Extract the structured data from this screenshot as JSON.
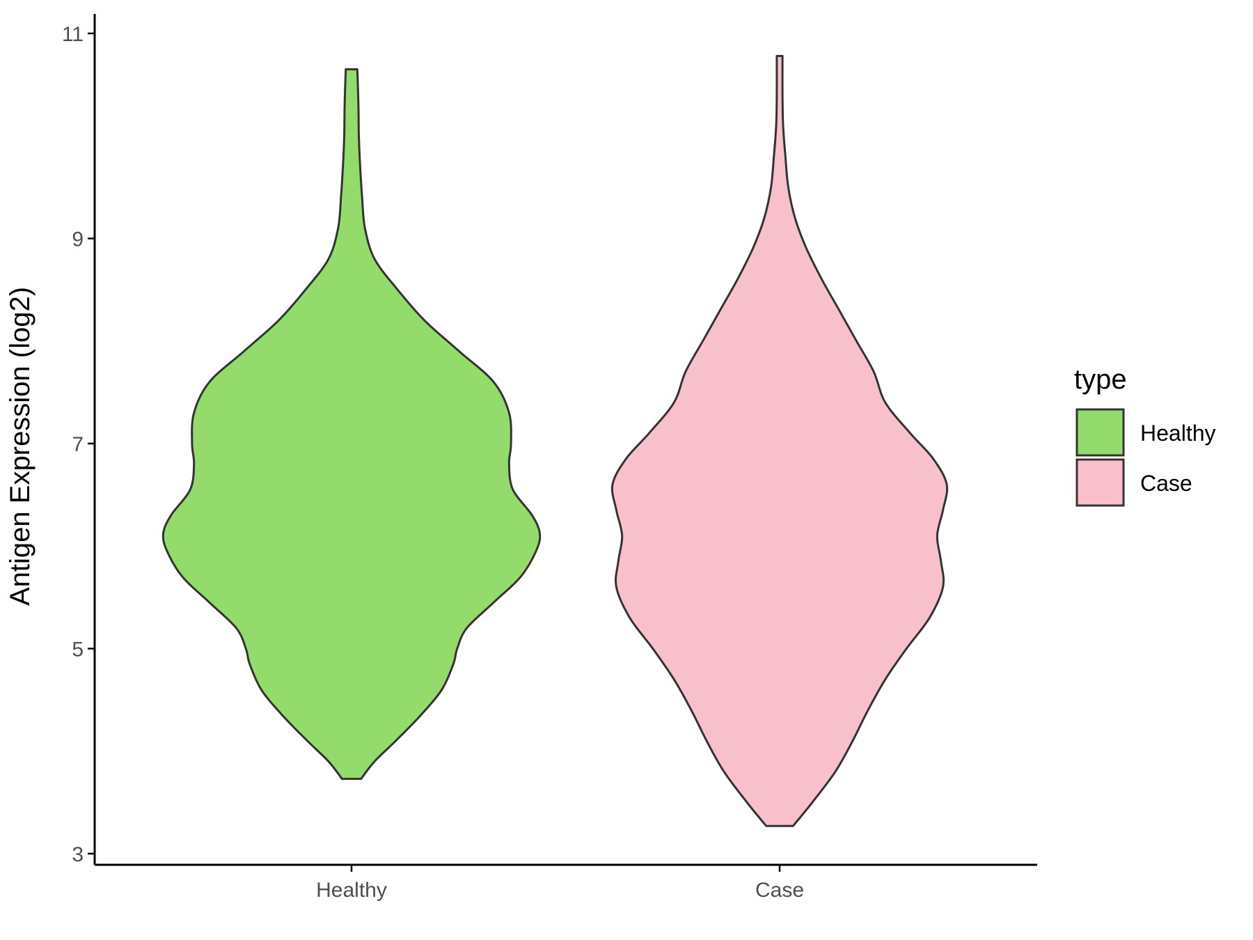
{
  "chart_data": {
    "type": "violin",
    "xlabel": "",
    "ylabel": "Antigen Expression (log2)",
    "ylim": [
      2.9,
      11.2
    ],
    "yticks": [
      3,
      5,
      7,
      9,
      11
    ],
    "yticklabels": [
      "3",
      "5",
      "7",
      "9",
      "11"
    ],
    "categories": [
      "Healthy",
      "Case"
    ],
    "grid": false,
    "legend": {
      "title": "type",
      "placement": "right",
      "entries": [
        {
          "label": "Healthy",
          "color": "#93dc6b"
        },
        {
          "label": "Case",
          "color": "#f7c0cb"
        }
      ]
    },
    "series": [
      {
        "name": "Healthy",
        "color": "#93dc6b",
        "min": 3.73,
        "max": 10.65,
        "density_profile": [
          [
            3.73,
            0.05
          ],
          [
            3.9,
            0.12
          ],
          [
            4.1,
            0.23
          ],
          [
            4.35,
            0.36
          ],
          [
            4.6,
            0.47
          ],
          [
            4.85,
            0.53
          ],
          [
            5.0,
            0.55
          ],
          [
            5.2,
            0.6
          ],
          [
            5.45,
            0.74
          ],
          [
            5.7,
            0.88
          ],
          [
            5.95,
            0.96
          ],
          [
            6.12,
            0.98
          ],
          [
            6.3,
            0.94
          ],
          [
            6.55,
            0.84
          ],
          [
            6.8,
            0.82
          ],
          [
            7.0,
            0.83
          ],
          [
            7.3,
            0.82
          ],
          [
            7.6,
            0.74
          ],
          [
            7.9,
            0.56
          ],
          [
            8.2,
            0.38
          ],
          [
            8.5,
            0.24
          ],
          [
            8.8,
            0.12
          ],
          [
            9.1,
            0.07
          ],
          [
            9.4,
            0.055
          ],
          [
            9.7,
            0.045
          ],
          [
            10.0,
            0.038
          ],
          [
            10.3,
            0.036
          ],
          [
            10.65,
            0.03
          ]
        ]
      },
      {
        "name": "Case",
        "color": "#f7c0cb",
        "min": 3.27,
        "max": 10.78,
        "density_profile": [
          [
            3.27,
            0.07
          ],
          [
            3.5,
            0.17
          ],
          [
            3.8,
            0.29
          ],
          [
            4.1,
            0.38
          ],
          [
            4.4,
            0.46
          ],
          [
            4.7,
            0.55
          ],
          [
            5.0,
            0.66
          ],
          [
            5.3,
            0.78
          ],
          [
            5.6,
            0.85
          ],
          [
            5.85,
            0.84
          ],
          [
            6.1,
            0.82
          ],
          [
            6.35,
            0.85
          ],
          [
            6.6,
            0.87
          ],
          [
            6.85,
            0.8
          ],
          [
            7.1,
            0.68
          ],
          [
            7.4,
            0.55
          ],
          [
            7.7,
            0.49
          ],
          [
            8.0,
            0.4
          ],
          [
            8.3,
            0.31
          ],
          [
            8.6,
            0.22
          ],
          [
            8.9,
            0.14
          ],
          [
            9.2,
            0.08
          ],
          [
            9.5,
            0.045
          ],
          [
            9.8,
            0.03
          ],
          [
            10.1,
            0.018
          ],
          [
            10.4,
            0.015
          ],
          [
            10.78,
            0.015
          ]
        ]
      }
    ]
  }
}
